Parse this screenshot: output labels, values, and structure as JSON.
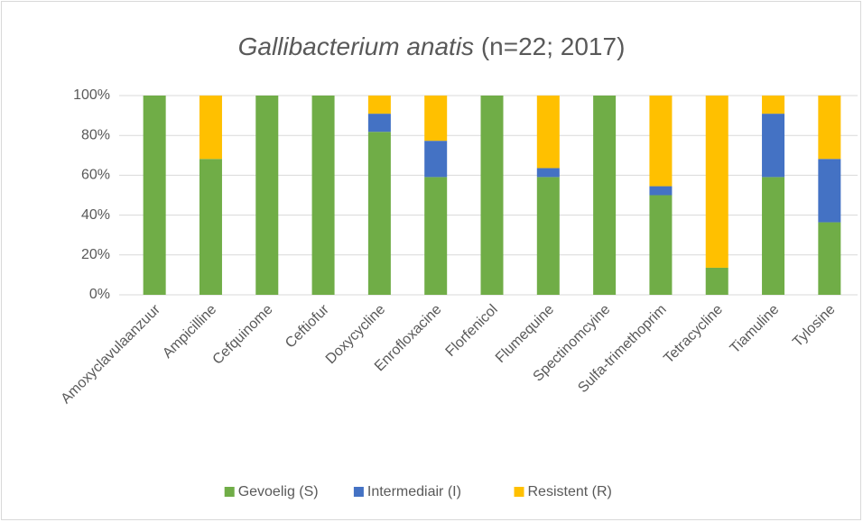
{
  "chart_data": {
    "type": "stacked_bar",
    "title_parts": [
      "Gallibacterium anatis",
      "(n=22; 2017)"
    ],
    "categories": [
      "Amoxyclavulaanzuur",
      "Ampicilline",
      "Cefquinome",
      "Ceftiofur",
      "Doxycycline",
      "Enrofloxacine",
      "Florfenicol",
      "Flumequine",
      "Spectinomcyine",
      "Sulfa-trimethoprim",
      "Tetracycline",
      "Tiamuline",
      "Tylosine"
    ],
    "series": [
      {
        "name": "Gevoelig (S)",
        "color": "#70ad47",
        "values": [
          100,
          68.2,
          100,
          100,
          81.8,
          59.1,
          100,
          59.1,
          100,
          50,
          13.6,
          59.1,
          36.4
        ]
      },
      {
        "name": "Intermediair (I)",
        "color": "#4472c4",
        "values": [
          0,
          0,
          0,
          0,
          9.1,
          18.2,
          0,
          4.5,
          0,
          4.5,
          0,
          31.8,
          31.8
        ]
      },
      {
        "name": "Resistent (R)",
        "color": "#ffc000",
        "values": [
          0,
          31.8,
          0,
          0,
          9.1,
          22.7,
          0,
          36.4,
          0,
          45.5,
          86.4,
          9.1,
          31.8
        ]
      }
    ],
    "ylim": [
      0,
      100
    ],
    "yticks": [
      {
        "value": 0,
        "label": "0%"
      },
      {
        "value": 20,
        "label": "20%"
      },
      {
        "value": 40,
        "label": "40%"
      },
      {
        "value": 60,
        "label": "60%"
      },
      {
        "value": 80,
        "label": "80%"
      },
      {
        "value": 100,
        "label": "100%"
      }
    ],
    "grid": true,
    "legend": "bottom"
  }
}
